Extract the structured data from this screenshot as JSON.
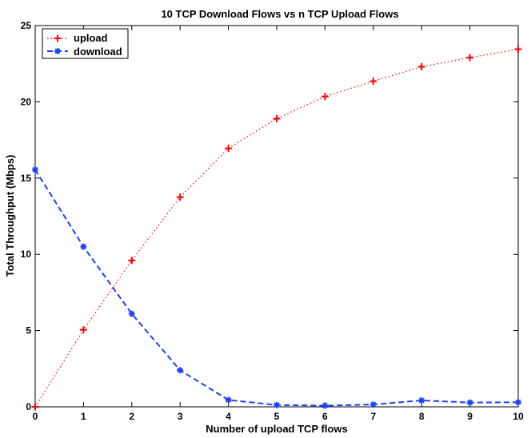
{
  "chart_data": {
    "type": "line",
    "title": "10 TCP Download Flows vs n TCP Upload Flows",
    "xlabel": "Number of upload TCP flows",
    "ylabel": "Total Throughput (Mbps)",
    "xlim": [
      0,
      10
    ],
    "ylim": [
      0,
      25
    ],
    "xticks": [
      "0",
      "1",
      "2",
      "3",
      "4",
      "5",
      "6",
      "7",
      "8",
      "9",
      "10"
    ],
    "yticks": [
      "0",
      "5",
      "10",
      "15",
      "20",
      "25"
    ],
    "grid": false,
    "legend_position": "top-left",
    "x": [
      0,
      1,
      2,
      3,
      4,
      5,
      6,
      7,
      8,
      9,
      10
    ],
    "series": [
      {
        "name": "upload",
        "values": [
          0.0,
          5.05,
          9.6,
          13.75,
          16.95,
          18.9,
          20.35,
          21.35,
          22.3,
          22.9,
          23.45
        ],
        "color": "#ff0000",
        "line_style": "dotted",
        "marker": "plus"
      },
      {
        "name": "download",
        "values": [
          15.55,
          10.5,
          6.1,
          2.4,
          0.45,
          0.12,
          0.08,
          0.15,
          0.42,
          0.28,
          0.3
        ],
        "color": "#1f3fff",
        "line_style": "dashed",
        "marker": "asterisk"
      }
    ]
  }
}
